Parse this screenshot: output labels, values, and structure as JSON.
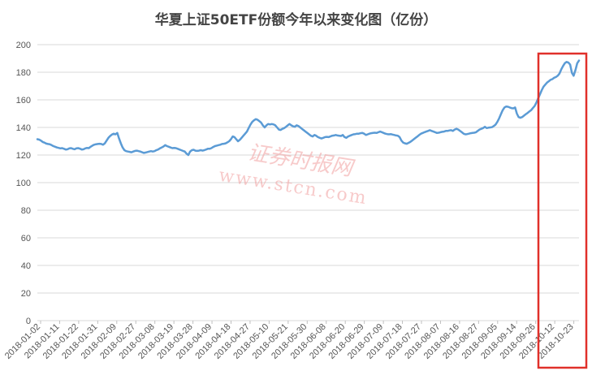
{
  "chart_data": {
    "type": "line",
    "title": "华夏上证50ETF份额今年以来变化图（亿份）",
    "xlabel": "",
    "ylabel": "",
    "ylim": [
      0,
      200
    ],
    "yticks": [
      0,
      20,
      40,
      60,
      80,
      100,
      120,
      140,
      160,
      180,
      200
    ],
    "grid": true,
    "legend": "none",
    "line_color": "#5b9bd5",
    "highlight_box_color": "#e0302a",
    "x_tick_labels": [
      "2018-01-02",
      "2018-01-11",
      "2018-01-22",
      "2018-01-31",
      "2018-02-09",
      "2018-02-27",
      "2018-03-08",
      "2018-03-19",
      "2018-03-28",
      "2018-04-09",
      "2018-04-18",
      "2018-04-27",
      "2018-05-10",
      "2018-05-21",
      "2018-05-30",
      "2018-06-08",
      "2018-06-20",
      "2018-06-29",
      "2018-07-09",
      "2018-07-18",
      "2018-07-27",
      "2018-08-07",
      "2018-08-16",
      "2018-08-27",
      "2018-09-05",
      "2018-09-14",
      "2018-09-26",
      "2018-10-12",
      "2018-10-23"
    ],
    "series": [
      {
        "values": [
          131.5,
          131.2,
          130.5,
          129.5,
          129,
          128.3,
          128,
          127.8,
          127.2,
          126.5,
          126,
          125.5,
          125.2,
          124.8,
          125,
          124.5,
          124,
          124.2,
          124.8,
          125,
          124.5,
          124.2,
          124.8,
          125,
          124.6,
          124,
          124.2,
          124.8,
          125.2,
          125,
          126,
          126.8,
          127.5,
          127.8,
          128,
          128.2,
          128,
          127.5,
          128.5,
          130.5,
          132.5,
          133.8,
          134.8,
          135.5,
          135,
          136,
          132,
          128.5,
          125.5,
          123.5,
          122.8,
          122.5,
          122.3,
          122,
          122.5,
          123,
          123.2,
          122.8,
          122.5,
          122,
          121.5,
          121.8,
          122.2,
          122.5,
          122.8,
          122.5,
          122.8,
          123.5,
          124,
          124.8,
          125.5,
          126.2,
          127.2,
          126.5,
          126,
          125.5,
          125,
          125.2,
          125,
          124.5,
          124,
          123.5,
          123,
          122.5,
          121,
          120,
          122.5,
          123.5,
          123.8,
          123.2,
          123,
          123.2,
          123.5,
          123.2,
          123.5,
          124,
          124.5,
          124.5,
          125,
          125.8,
          126.5,
          126.8,
          127.2,
          127.5,
          128,
          128.2,
          128.5,
          129.2,
          130,
          131.5,
          133.5,
          133,
          131.5,
          130,
          131,
          132.5,
          134,
          135.5,
          137,
          139.5,
          142,
          144,
          145.2,
          146,
          145.5,
          144.5,
          143.5,
          141.5,
          140,
          141.5,
          142.5,
          142.2,
          142.5,
          142.2,
          141.5,
          140,
          138.5,
          138.2,
          139,
          139.5,
          140.5,
          141.5,
          142.5,
          141.5,
          140.8,
          140.5,
          141.5,
          141,
          140,
          139,
          138,
          137,
          136,
          135,
          134,
          133.5,
          134.5,
          134,
          133,
          132.5,
          132,
          132.5,
          133,
          133.2,
          133,
          133.5,
          134,
          134.2,
          134.5,
          134.2,
          134,
          133.8,
          134.5,
          133,
          132.5,
          133.5,
          134,
          134.5,
          135,
          135.2,
          135.5,
          135.5,
          135.8,
          136,
          135.5,
          134.5,
          135,
          135.5,
          135.8,
          136,
          136.2,
          136,
          136.5,
          137,
          136.5,
          136,
          135.5,
          135.2,
          135,
          135.2,
          134.8,
          134.5,
          134.2,
          134,
          133,
          130.5,
          129,
          128.5,
          128.2,
          128.8,
          129.5,
          130.5,
          131.5,
          132.5,
          133.5,
          134.5,
          135.5,
          136,
          136.5,
          137,
          137.5,
          138,
          137.5,
          137,
          136.5,
          136,
          136.2,
          136.5,
          136.8,
          137,
          137.5,
          137.5,
          137.8,
          138,
          137.5,
          138.5,
          139,
          138.5,
          137.5,
          136.5,
          135.5,
          135,
          135.2,
          135.5,
          135.8,
          136,
          136.2,
          136.5,
          137.5,
          138.5,
          139,
          139.5,
          140.5,
          139.5,
          139.8,
          140,
          140.2,
          141,
          142,
          144,
          146.5,
          149.5,
          152.5,
          154.5,
          155.2,
          155,
          154.5,
          154,
          153.8,
          154.5,
          150,
          147.5,
          147,
          147.5,
          148.5,
          149.5,
          150.5,
          151.5,
          152.5,
          154,
          155.5,
          158,
          161,
          164,
          167,
          169.5,
          171,
          172.5,
          173.5,
          174.5,
          175,
          176,
          176.5,
          177.5,
          179,
          182,
          184.5,
          186.5,
          187.5,
          187,
          185.5,
          179.5,
          177.5,
          181.5,
          186.5,
          188.5
        ]
      }
    ]
  },
  "watermark": {
    "line1": "证券时报网",
    "line2": "www.stcn.com"
  }
}
